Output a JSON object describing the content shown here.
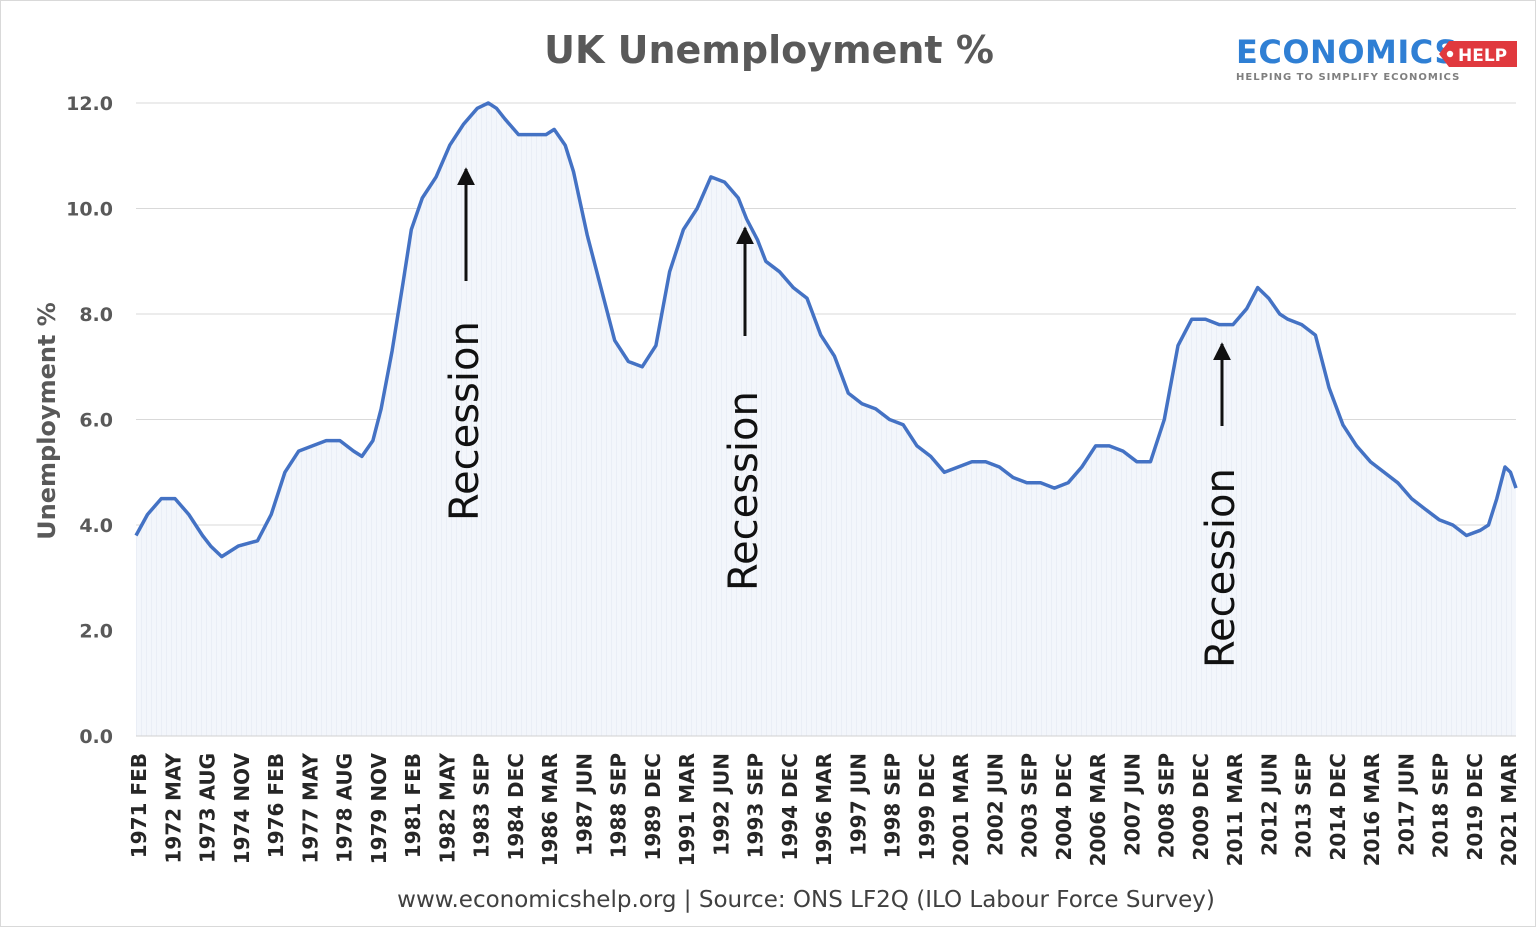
{
  "chart_data": {
    "type": "area",
    "title": "UK Unemployment %",
    "ylabel": "Unemployment %",
    "xlabel": "",
    "ylim": [
      0,
      12
    ],
    "yticks": [
      "0.0",
      "2.0",
      "4.0",
      "6.0",
      "8.0",
      "10.0",
      "12.0"
    ],
    "grid": true,
    "legend": "none",
    "x_tick_labels": [
      "1971 FEB",
      "1972 MAY",
      "1973 AUG",
      "1974 NOV",
      "1976 FEB",
      "1977 MAY",
      "1978 AUG",
      "1979 NOV",
      "1981 FEB",
      "1982 MAY",
      "1983 SEP",
      "1984 DEC",
      "1986 MAR",
      "1987 JUN",
      "1988 SEP",
      "1989 DEC",
      "1991 MAR",
      "1992 JUN",
      "1993 SEP",
      "1994 DEC",
      "1996 MAR",
      "1997 JUN",
      "1998 SEP",
      "1999 DEC",
      "2001 MAR",
      "2002 JUN",
      "2003 SEP",
      "2004 DEC",
      "2006 MAR",
      "2007 JUN",
      "2008 SEP",
      "2009 DEC",
      "2011 MAR",
      "2012 JUN",
      "2013 SEP",
      "2014 DEC",
      "2016 MAR",
      "2017 JUN",
      "2018 SEP",
      "2019 DEC",
      "2021 MAR"
    ],
    "series": [
      {
        "color": "#4472c4",
        "x": [
          1971.08,
          1971.5,
          1972.0,
          1972.5,
          1973.0,
          1973.5,
          1973.8,
          1974.2,
          1974.8,
          1975.5,
          1976.0,
          1976.5,
          1977.0,
          1977.5,
          1978.0,
          1978.5,
          1979.0,
          1979.3,
          1979.7,
          1980.0,
          1980.4,
          1980.8,
          1981.1,
          1981.5,
          1982.0,
          1982.5,
          1983.0,
          1983.5,
          1983.9,
          1984.2,
          1984.5,
          1985.0,
          1985.5,
          1986.0,
          1986.3,
          1986.7,
          1987.0,
          1987.5,
          1988.0,
          1988.5,
          1989.0,
          1989.5,
          1990.0,
          1990.5,
          1991.0,
          1991.5,
          1992.0,
          1992.5,
          1993.0,
          1993.3,
          1993.7,
          1994.0,
          1994.5,
          1995.0,
          1995.5,
          1996.0,
          1996.5,
          1997.0,
          1997.5,
          1998.0,
          1998.5,
          1999.0,
          1999.5,
          2000.0,
          2000.5,
          2001.0,
          2001.5,
          2002.0,
          2002.5,
          2003.0,
          2003.5,
          2004.0,
          2004.5,
          2005.0,
          2005.5,
          2006.0,
          2006.5,
          2007.0,
          2007.5,
          2008.0,
          2008.5,
          2009.0,
          2009.5,
          2010.0,
          2010.5,
          2011.0,
          2011.5,
          2011.9,
          2012.3,
          2012.7,
          2013.0,
          2013.5,
          2014.0,
          2014.5,
          2015.0,
          2015.5,
          2016.0,
          2016.5,
          2017.0,
          2017.5,
          2018.0,
          2018.5,
          2019.0,
          2019.5,
          2020.0,
          2020.3,
          2020.6,
          2020.9,
          2021.1,
          2021.3
        ],
        "y": [
          3.8,
          4.2,
          4.5,
          4.5,
          4.2,
          3.8,
          3.6,
          3.4,
          3.6,
          3.7,
          4.2,
          5.0,
          5.4,
          5.5,
          5.6,
          5.6,
          5.4,
          5.3,
          5.6,
          6.2,
          7.3,
          8.6,
          9.6,
          10.2,
          10.6,
          11.2,
          11.6,
          11.9,
          12.0,
          11.9,
          11.7,
          11.4,
          11.4,
          11.4,
          11.5,
          11.2,
          10.7,
          9.5,
          8.5,
          7.5,
          7.1,
          7.0,
          7.4,
          8.8,
          9.6,
          10.0,
          10.6,
          10.5,
          10.2,
          9.8,
          9.4,
          9.0,
          8.8,
          8.5,
          8.3,
          7.6,
          7.2,
          6.5,
          6.3,
          6.2,
          6.0,
          5.9,
          5.5,
          5.3,
          5.0,
          5.1,
          5.2,
          5.2,
          5.1,
          4.9,
          4.8,
          4.8,
          4.7,
          4.8,
          5.1,
          5.5,
          5.5,
          5.4,
          5.2,
          5.2,
          6.0,
          7.4,
          7.9,
          7.9,
          7.8,
          7.8,
          8.1,
          8.5,
          8.3,
          8.0,
          7.9,
          7.8,
          7.6,
          6.6,
          5.9,
          5.5,
          5.2,
          5.0,
          4.8,
          4.5,
          4.3,
          4.1,
          4.0,
          3.8,
          3.9,
          4.0,
          4.5,
          5.1,
          5.0,
          4.7
        ]
      }
    ],
    "annotations": [
      {
        "text": "Recession",
        "x": 1983.0
      },
      {
        "text": "Recession",
        "x": 1992.7
      },
      {
        "text": "Recession",
        "x": 2010.1
      }
    ],
    "footer": "www.economicshelp.org  | Source:  ONS LF2Q (ILO Labour Force Survey)",
    "logo": {
      "main": "ECONOMICS",
      "badge": "HELP",
      "tagline": "HELPING TO SIMPLIFY ECONOMICS"
    }
  }
}
